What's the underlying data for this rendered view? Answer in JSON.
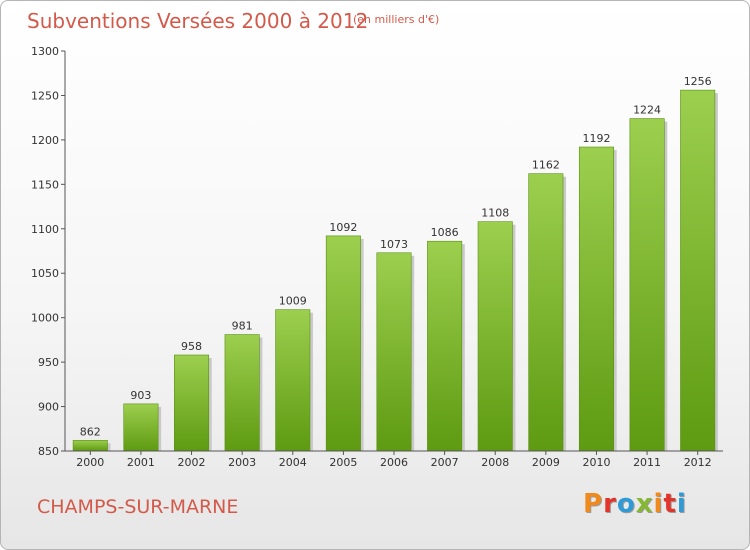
{
  "header": {
    "title": "Subventions Versées 2000 à 2012",
    "subtitle": "(en milliers d'€)"
  },
  "footer": {
    "commune": "CHAMPS-SUR-MARNE",
    "brand_letters": [
      "P",
      "r",
      "o",
      "x",
      "i",
      "t",
      "i"
    ],
    "brand_colors": [
      "#f08a1c",
      "#e2342b",
      "#2e9ad6",
      "#84b832",
      "#f08a1c",
      "#e2342b",
      "#2e9ad6"
    ]
  },
  "chart_data": {
    "type": "bar",
    "title": "Subventions Versées 2000 à 2012",
    "subtitle": "(en milliers d'€)",
    "categories": [
      "2000",
      "2001",
      "2002",
      "2003",
      "2004",
      "2005",
      "2006",
      "2007",
      "2008",
      "2009",
      "2010",
      "2011",
      "2012"
    ],
    "values": [
      862,
      903,
      958,
      981,
      1009,
      1092,
      1073,
      1086,
      1108,
      1162,
      1192,
      1224,
      1256
    ],
    "ylim": [
      850,
      1300
    ],
    "yticks": [
      850,
      900,
      950,
      1000,
      1050,
      1100,
      1150,
      1200,
      1250,
      1300
    ],
    "grid": false,
    "bar_color_top": "#9ccf4e",
    "bar_color_bottom": "#5e9a12"
  }
}
